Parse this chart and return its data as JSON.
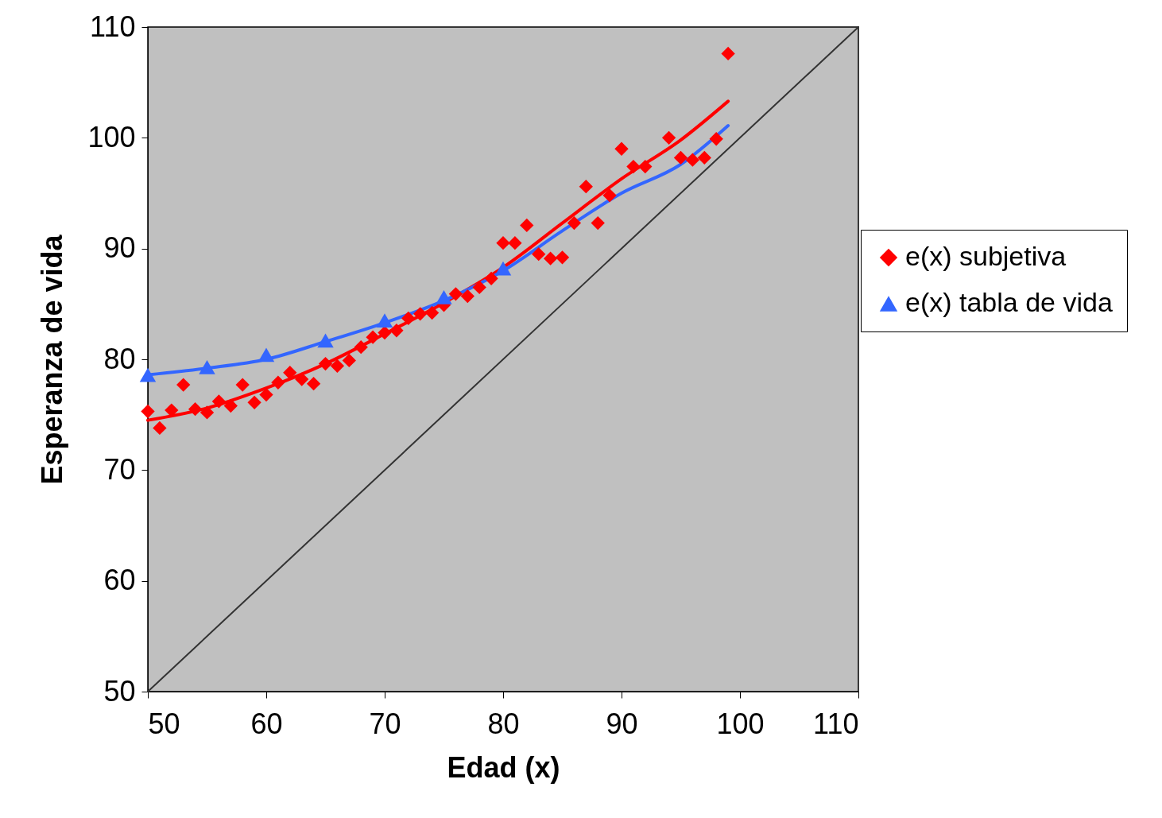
{
  "chart_data": {
    "type": "scatter",
    "xlabel": "Edad (x)",
    "ylabel": "Esperanza de vida",
    "xlim": [
      50,
      110
    ],
    "ylim": [
      50,
      110
    ],
    "xticks": [
      50,
      60,
      70,
      80,
      90,
      100,
      110
    ],
    "yticks": [
      50,
      60,
      70,
      80,
      90,
      100,
      110
    ],
    "grid": false,
    "legend": "right",
    "series": [
      {
        "name": "e(x) subjetiva",
        "marker": "diamond",
        "color": "#ff0000",
        "x": [
          50,
          51,
          52,
          53,
          54,
          55,
          56,
          57,
          58,
          59,
          60,
          61,
          62,
          63,
          64,
          65,
          66,
          67,
          68,
          69,
          70,
          71,
          72,
          73,
          74,
          75,
          76,
          77,
          78,
          79,
          80,
          81,
          82,
          83,
          84,
          85,
          86,
          87,
          88,
          89,
          90,
          91,
          92,
          94,
          95,
          96,
          97,
          98,
          99
        ],
        "values": [
          75.3,
          73.8,
          75.4,
          77.7,
          75.5,
          75.2,
          76.2,
          75.8,
          77.7,
          76.1,
          76.8,
          77.9,
          78.8,
          78.2,
          77.8,
          79.6,
          79.4,
          79.9,
          81.1,
          82.0,
          82.4,
          82.6,
          83.7,
          84.1,
          84.2,
          84.9,
          85.9,
          85.7,
          86.5,
          87.3,
          90.5,
          90.5,
          92.1,
          89.5,
          89.1,
          89.2,
          92.3,
          95.6,
          92.3,
          94.8,
          99.0,
          97.4,
          97.4,
          100.0,
          98.2,
          98.0,
          98.2,
          99.9,
          107.6
        ]
      },
      {
        "name": "e(x) tabla de vida",
        "marker": "triangle",
        "color": "#3366ff",
        "x": [
          50,
          55,
          60,
          65,
          70,
          75,
          80
        ],
        "values": [
          78.6,
          79.3,
          80.4,
          81.7,
          83.5,
          85.6,
          88.2
        ]
      },
      {
        "type": "line",
        "marker": "none",
        "color": "#ff0000",
        "x": [
          50,
          55,
          60,
          65,
          70,
          75,
          80,
          85,
          90,
          95,
          99
        ],
        "values": [
          74.5,
          75.6,
          77.4,
          79.6,
          82.3,
          85.1,
          88.3,
          92.3,
          96.3,
          99.8,
          103.3
        ]
      },
      {
        "type": "line",
        "marker": "none",
        "color": "#3366ff",
        "x": [
          50,
          55,
          60,
          65,
          70,
          75,
          80,
          85,
          90,
          95,
          99
        ],
        "values": [
          78.6,
          79.2,
          80.0,
          81.6,
          83.3,
          85.3,
          88.0,
          91.6,
          95.0,
          97.6,
          101.1
        ]
      },
      {
        "type": "line",
        "marker": "none",
        "color": "#333333",
        "x": [
          50,
          110
        ],
        "values": [
          50,
          110
        ]
      }
    ]
  }
}
